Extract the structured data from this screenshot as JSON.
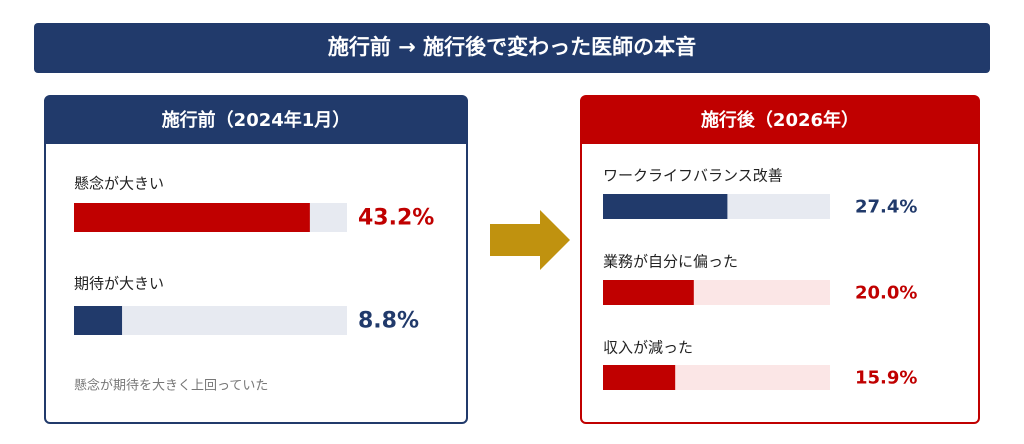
{
  "title": "施行前 → 施行後で変わった医師の本音",
  "xlim": [
    0,
    50
  ],
  "panels": [
    {
      "title": "施行前（2024年1月）",
      "color": "#213a6b",
      "items": [
        {
          "label": "懸念が大きい",
          "value": 43.2,
          "value_label": "43.2%",
          "color": "#c00000",
          "track": "#e7eaf1"
        },
        {
          "label": "期待が大きい",
          "value": 8.8,
          "value_label": "8.8%",
          "color": "#213a6b",
          "track": "#e7eaf1"
        }
      ],
      "note": "懸念が期待を大きく上回っていた"
    },
    {
      "title": "施行後（2026年）",
      "color": "#c00000",
      "items": [
        {
          "label": "ワークライフバランス改善",
          "value": 27.4,
          "value_label": "27.4%",
          "color": "#213a6b",
          "track": "#e7eaf1"
        },
        {
          "label": "業務が自分に偏った",
          "value": 20.0,
          "value_label": "20.0%",
          "color": "#c00000",
          "track": "#fbe6e6"
        },
        {
          "label": "収入が減った",
          "value": 15.9,
          "value_label": "15.9%",
          "color": "#c00000",
          "track": "#fbe6e6"
        }
      ]
    }
  ]
}
